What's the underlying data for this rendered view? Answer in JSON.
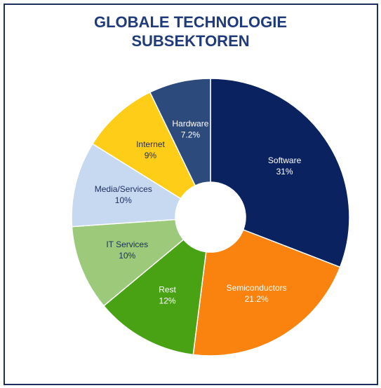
{
  "chart_data": {
    "type": "donut",
    "title": "GLOBALE TECHNOLOGIE SUBSEKTOREN",
    "categories": [
      "Software",
      "Semiconductors",
      "Rest",
      "IT Services",
      "Media/Services",
      "Internet",
      "Hardware"
    ],
    "values": [
      31,
      21.2,
      12,
      10,
      10,
      9,
      7.2
    ],
    "value_labels": [
      "31%",
      "21.2%",
      "12%",
      "10%",
      "10%",
      "9%",
      "7.2%"
    ],
    "colors": [
      "#0b2260",
      "#fa820f",
      "#48a214",
      "#9cc97a",
      "#c6d9f1",
      "#fecd18",
      "#2c4a7c"
    ]
  }
}
